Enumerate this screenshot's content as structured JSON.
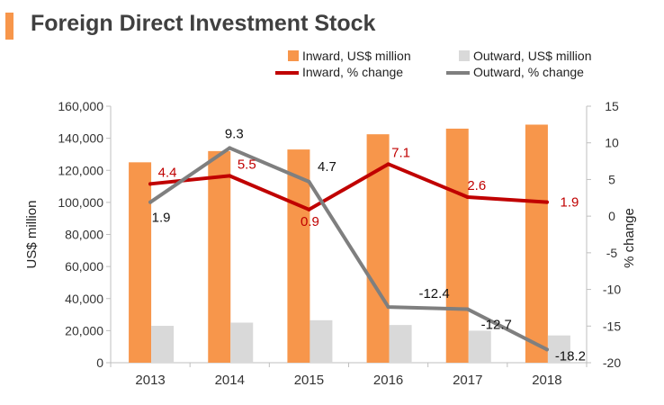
{
  "title": "Foreign Direct Investment Stock",
  "colors": {
    "accent": "#f7964b",
    "inward_bar": "#f7964b",
    "outward_bar": "#d9d9d9",
    "inward_line": "#c00000",
    "outward_line": "#7f7f7f"
  },
  "legend": {
    "inward_bar": "Inward, US$ million",
    "outward_bar": "Outward, US$ million",
    "inward_line": "Inward, % change",
    "outward_line": "Outward, % change"
  },
  "chart_data": {
    "type": "bar",
    "title": "Foreign Direct Investment Stock",
    "categories": [
      "2013",
      "2014",
      "2015",
      "2016",
      "2017",
      "2018"
    ],
    "series": [
      {
        "name": "Inward, US$ million",
        "type": "bar",
        "axis": "left",
        "values": [
          125000,
          132000,
          133000,
          142500,
          146000,
          148500
        ]
      },
      {
        "name": "Outward, US$ million",
        "type": "bar",
        "axis": "left",
        "values": [
          23000,
          25000,
          26500,
          23500,
          20000,
          17000
        ]
      },
      {
        "name": "Inward, % change",
        "type": "line",
        "axis": "right",
        "values": [
          4.4,
          5.5,
          0.9,
          7.1,
          2.6,
          1.9
        ],
        "labels": [
          "4.4",
          "5.5",
          "0.9",
          "7.1",
          "2.6",
          "1.9"
        ]
      },
      {
        "name": "Outward, % change",
        "type": "line",
        "axis": "right",
        "values": [
          1.9,
          9.3,
          4.7,
          -12.4,
          -12.7,
          -18.2
        ],
        "labels": [
          "1.9",
          "9.3",
          "4.7",
          "-12.4",
          "-12.7",
          "-18.2"
        ]
      }
    ],
    "ylabel": "US$ million",
    "y2label": "% change",
    "ylim": [
      0,
      160000
    ],
    "y2lim": [
      -20,
      15
    ],
    "yticks": [
      "0",
      "20,000",
      "40,000",
      "60,000",
      "80,000",
      "100,000",
      "120,000",
      "140,000",
      "160,000"
    ],
    "y2ticks": [
      "15",
      "10",
      "5",
      "0",
      "-5",
      "-10",
      "-15",
      "-20"
    ],
    "legend_position": "top-right",
    "grid": false
  }
}
